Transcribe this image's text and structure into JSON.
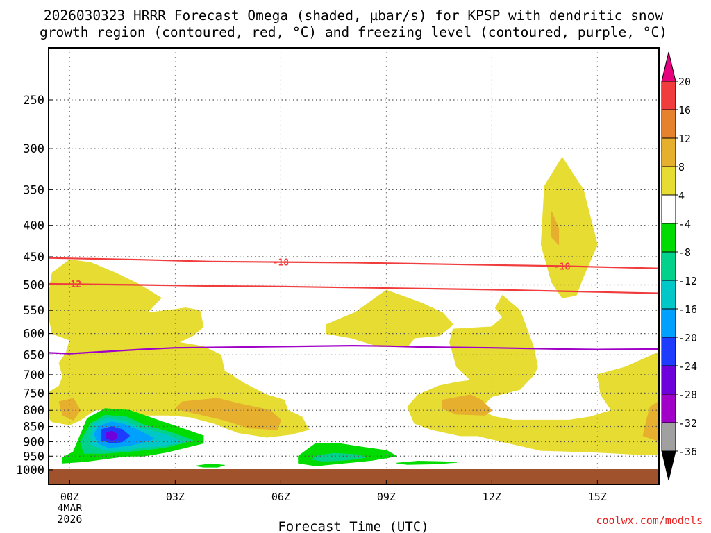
{
  "title": {
    "line1": "2026030323 HRRR Forecast Omega (shaded, µbar/s) for KPSP with dendritic snow",
    "line2": "growth region (contoured, red, °C) and freezing level (contoured, purple, °C)"
  },
  "footer": {
    "xlabel": "Forecast Time (UTC)",
    "credit": "coolwx.com/models"
  },
  "chart_data": {
    "type": "heatmap",
    "title": "2026030323 HRRR Forecast Omega (shaded, µbar/s) for KPSP with dendritic snow growth region (contoured, red, °C) and freezing level (contoured, purple, °C)",
    "xlabel": "Forecast Time (UTC)",
    "ylabel": "",
    "x_unit": "hours since 00Z 4MAR2026",
    "xlim": [
      -0.6,
      16.75
    ],
    "y_scale": "log-pressure (hPa, inverted)",
    "ylim": [
      1020,
      200
    ],
    "grid": true,
    "x_ticks": [
      {
        "hour": 0,
        "label": "00Z",
        "sub": [
          "4MAR",
          "2026"
        ]
      },
      {
        "hour": 3,
        "label": "03Z"
      },
      {
        "hour": 6,
        "label": "06Z"
      },
      {
        "hour": 9,
        "label": "09Z"
      },
      {
        "hour": 12,
        "label": "12Z"
      },
      {
        "hour": 15,
        "label": "15Z"
      }
    ],
    "y_ticks": [
      250,
      300,
      350,
      400,
      450,
      500,
      550,
      600,
      650,
      700,
      750,
      800,
      850,
      900,
      950,
      1000
    ],
    "ground": {
      "from_hPa": 1000,
      "color": "#a0522d"
    },
    "colorbar": {
      "levels": [
        -36,
        -32,
        -28,
        -24,
        -20,
        -16,
        -12,
        -8,
        -4,
        4,
        8,
        12,
        16,
        20
      ],
      "colors": [
        "#000000",
        "#a0a0a0",
        "#a000c8",
        "#6e00dc",
        "#1e3cff",
        "#00a0ff",
        "#00c8c8",
        "#00d28c",
        "#00dc00",
        "#ffffff",
        "#e6dc32",
        "#e6af2d",
        "#e6822d",
        "#f03c3c",
        "#e6007d"
      ],
      "colors_note": "first = below -36, last = above 20"
    },
    "omega_regions": [
      {
        "bin": "4 to 8",
        "color": "#e6dc32",
        "points": [
          [
            -0.5,
            478
          ],
          [
            0.0,
            455
          ],
          [
            0.6,
            460
          ],
          [
            1.3,
            478
          ],
          [
            2.0,
            500
          ],
          [
            2.6,
            525
          ],
          [
            2.2,
            555
          ],
          [
            2.8,
            550
          ],
          [
            3.3,
            545
          ],
          [
            3.7,
            550
          ],
          [
            3.8,
            585
          ],
          [
            3.5,
            605
          ],
          [
            3.1,
            620
          ],
          [
            3.8,
            630
          ],
          [
            4.3,
            650
          ],
          [
            4.4,
            690
          ],
          [
            5.0,
            725
          ],
          [
            5.6,
            755
          ],
          [
            6.1,
            770
          ],
          [
            6.2,
            800
          ],
          [
            6.6,
            820
          ],
          [
            6.8,
            860
          ],
          [
            6.3,
            875
          ],
          [
            5.6,
            885
          ],
          [
            4.8,
            870
          ],
          [
            4.1,
            840
          ],
          [
            3.4,
            820
          ],
          [
            2.8,
            815
          ],
          [
            2.1,
            815
          ],
          [
            1.5,
            800
          ],
          [
            1.2,
            795
          ],
          [
            0.7,
            800
          ],
          [
            0.3,
            830
          ],
          [
            0.0,
            845
          ],
          [
            -0.5,
            835
          ],
          [
            -0.8,
            800
          ],
          [
            -0.8,
            760
          ],
          [
            -0.3,
            730
          ],
          [
            -0.2,
            705
          ],
          [
            -0.3,
            670
          ],
          [
            -0.1,
            645
          ],
          [
            0.0,
            615
          ],
          [
            -0.5,
            600
          ],
          [
            -0.6,
            560
          ],
          [
            -0.6,
            520
          ]
        ]
      },
      {
        "bin": "4 to 8",
        "color": "#e6dc32",
        "points": [
          [
            7.3,
            580
          ],
          [
            8.1,
            555
          ],
          [
            9.0,
            510
          ],
          [
            10.0,
            535
          ],
          [
            10.6,
            555
          ],
          [
            10.9,
            580
          ],
          [
            10.5,
            605
          ],
          [
            9.8,
            610
          ],
          [
            9.6,
            630
          ],
          [
            8.8,
            630
          ],
          [
            8.0,
            610
          ],
          [
            7.3,
            600
          ]
        ]
      },
      {
        "bin": "4 to 8",
        "color": "#e6dc32",
        "points": [
          [
            9.9,
            755
          ],
          [
            10.5,
            730
          ],
          [
            11.0,
            720
          ],
          [
            11.4,
            715
          ],
          [
            11.0,
            680
          ],
          [
            10.8,
            620
          ],
          [
            10.9,
            590
          ],
          [
            12.0,
            585
          ],
          [
            12.3,
            565
          ],
          [
            12.1,
            545
          ],
          [
            12.3,
            520
          ],
          [
            12.8,
            550
          ],
          [
            13.0,
            590
          ],
          [
            13.2,
            635
          ],
          [
            13.3,
            680
          ],
          [
            13.2,
            700
          ],
          [
            12.8,
            740
          ],
          [
            12.0,
            760
          ],
          [
            11.6,
            800
          ],
          [
            12.1,
            820
          ],
          [
            12.6,
            830
          ],
          [
            13.4,
            830
          ],
          [
            14.2,
            830
          ],
          [
            14.8,
            820
          ],
          [
            15.4,
            800
          ],
          [
            15.1,
            755
          ],
          [
            15.0,
            700
          ],
          [
            15.8,
            680
          ],
          [
            16.7,
            645
          ],
          [
            16.8,
            830
          ],
          [
            16.8,
            945
          ],
          [
            16.3,
            945
          ],
          [
            14.8,
            935
          ],
          [
            13.4,
            930
          ],
          [
            12.3,
            900
          ],
          [
            11.6,
            880
          ],
          [
            11.1,
            880
          ],
          [
            10.3,
            860
          ],
          [
            9.8,
            840
          ],
          [
            9.6,
            790
          ]
        ]
      },
      {
        "bin": "4 to 8",
        "color": "#e6dc32",
        "points": [
          [
            13.5,
            345
          ],
          [
            14.0,
            310
          ],
          [
            14.6,
            350
          ],
          [
            15.0,
            430
          ],
          [
            14.6,
            485
          ],
          [
            14.4,
            520
          ],
          [
            14.0,
            525
          ],
          [
            13.7,
            495
          ],
          [
            13.4,
            430
          ]
        ]
      },
      {
        "bin": "8 to 12",
        "color": "#e6af2d",
        "points": [
          [
            3.2,
            775
          ],
          [
            4.2,
            765
          ],
          [
            4.8,
            780
          ],
          [
            5.7,
            800
          ],
          [
            6.0,
            830
          ],
          [
            5.9,
            860
          ],
          [
            5.1,
            855
          ],
          [
            4.4,
            830
          ],
          [
            3.6,
            810
          ],
          [
            3.0,
            795
          ]
        ]
      },
      {
        "bin": "8 to 12",
        "color": "#e6af2d",
        "points": [
          [
            -0.3,
            775
          ],
          [
            0.1,
            765
          ],
          [
            0.3,
            800
          ],
          [
            0.1,
            830
          ],
          [
            -0.2,
            815
          ]
        ]
      },
      {
        "bin": "8 to 12",
        "color": "#e6af2d",
        "points": [
          [
            10.6,
            770
          ],
          [
            11.4,
            755
          ],
          [
            11.7,
            770
          ],
          [
            12.0,
            800
          ],
          [
            11.8,
            815
          ],
          [
            11.0,
            812
          ],
          [
            10.6,
            795
          ]
        ]
      },
      {
        "bin": "8 to 12",
        "color": "#e6af2d",
        "points": [
          [
            16.5,
            790
          ],
          [
            16.8,
            770
          ],
          [
            16.8,
            900
          ],
          [
            16.3,
            880
          ],
          [
            16.4,
            830
          ]
        ]
      },
      {
        "bin": "8 to 12",
        "color": "#e6af2d",
        "points": [
          [
            13.7,
            380
          ],
          [
            13.9,
            405
          ],
          [
            13.9,
            430
          ],
          [
            13.7,
            418
          ]
        ]
      },
      {
        "bin": "-8 to -4",
        "color": "#00dc00",
        "points": [
          [
            0.5,
            825
          ],
          [
            1.0,
            795
          ],
          [
            1.7,
            800
          ],
          [
            2.5,
            830
          ],
          [
            3.3,
            860
          ],
          [
            3.8,
            880
          ],
          [
            3.8,
            905
          ],
          [
            3.3,
            920
          ],
          [
            2.8,
            935
          ],
          [
            2.1,
            950
          ],
          [
            1.6,
            950
          ],
          [
            1.0,
            960
          ],
          [
            0.4,
            970
          ],
          [
            -0.2,
            975
          ],
          [
            -0.2,
            955
          ],
          [
            0.1,
            935
          ]
        ]
      },
      {
        "bin": "-12 to -8",
        "color": "#00d28c",
        "points": [
          [
            0.6,
            840
          ],
          [
            1.0,
            815
          ],
          [
            1.6,
            820
          ],
          [
            2.1,
            845
          ],
          [
            2.9,
            870
          ],
          [
            3.5,
            895
          ],
          [
            3.2,
            905
          ],
          [
            2.7,
            920
          ],
          [
            2.0,
            930
          ],
          [
            1.5,
            935
          ],
          [
            1.0,
            940
          ],
          [
            0.4,
            940
          ],
          [
            0.3,
            900
          ]
        ]
      },
      {
        "bin": "-16 to -12",
        "color": "#00c8c8",
        "points": [
          [
            0.7,
            840
          ],
          [
            1.1,
            825
          ],
          [
            1.6,
            835
          ],
          [
            2.0,
            855
          ],
          [
            2.7,
            875
          ],
          [
            3.2,
            900
          ],
          [
            2.6,
            915
          ],
          [
            2.0,
            920
          ],
          [
            1.5,
            930
          ],
          [
            1.0,
            930
          ],
          [
            0.6,
            910
          ],
          [
            0.6,
            875
          ]
        ]
      },
      {
        "bin": "-20 to -16",
        "color": "#00a0ff",
        "points": [
          [
            0.8,
            850
          ],
          [
            1.2,
            835
          ],
          [
            1.6,
            845
          ],
          [
            2.0,
            865
          ],
          [
            2.4,
            890
          ],
          [
            2.0,
            905
          ],
          [
            1.6,
            915
          ],
          [
            1.1,
            920
          ],
          [
            0.8,
            905
          ],
          [
            0.7,
            875
          ]
        ]
      },
      {
        "bin": "-24 to -20",
        "color": "#1e3cff",
        "points": [
          [
            0.9,
            860
          ],
          [
            1.2,
            850
          ],
          [
            1.5,
            860
          ],
          [
            1.7,
            880
          ],
          [
            1.5,
            900
          ],
          [
            1.2,
            905
          ],
          [
            0.9,
            895
          ]
        ]
      },
      {
        "bin": "-28 to -24",
        "color": "#6e00dc",
        "points": [
          [
            1.05,
            870
          ],
          [
            1.2,
            865
          ],
          [
            1.35,
            875
          ],
          [
            1.35,
            890
          ],
          [
            1.2,
            895
          ],
          [
            1.05,
            888
          ]
        ]
      },
      {
        "bin": "-8 to -4",
        "color": "#00dc00",
        "points": [
          [
            6.5,
            950
          ],
          [
            7.0,
            905
          ],
          [
            7.6,
            905
          ],
          [
            8.4,
            920
          ],
          [
            9.0,
            930
          ],
          [
            9.3,
            950
          ],
          [
            8.6,
            965
          ],
          [
            7.8,
            975
          ],
          [
            7.0,
            985
          ],
          [
            6.5,
            975
          ]
        ]
      },
      {
        "bin": "-12 to -8",
        "color": "#00d28c",
        "points": [
          [
            7.0,
            950
          ],
          [
            7.5,
            940
          ],
          [
            8.2,
            945
          ],
          [
            8.4,
            955
          ],
          [
            7.8,
            965
          ],
          [
            7.2,
            968
          ],
          [
            6.9,
            962
          ]
        ]
      },
      {
        "bin": "-8 to -4",
        "color": "#00dc00",
        "points": [
          [
            9.3,
            975
          ],
          [
            9.9,
            968
          ],
          [
            10.6,
            970
          ],
          [
            11.0,
            972
          ],
          [
            10.4,
            978
          ],
          [
            9.6,
            980
          ]
        ]
      },
      {
        "bin": "-8 to -4",
        "color": "#00dc00",
        "points": [
          [
            3.6,
            985
          ],
          [
            4.0,
            978
          ],
          [
            4.4,
            983
          ],
          [
            4.2,
            990
          ],
          [
            3.8,
            990
          ]
        ]
      }
    ],
    "series": [
      {
        "name": "-18",
        "kind": "dendritic growth isotherm (°C)",
        "color": "#f03c3c",
        "x": [
          -0.6,
          2,
          4,
          6,
          8,
          10,
          12,
          14,
          16.75
        ],
        "y": [
          452,
          455,
          458,
          459,
          460,
          462,
          464,
          466,
          470
        ]
      },
      {
        "name": "-12",
        "kind": "dendritic growth isotherm (°C)",
        "color": "#f03c3c",
        "x": [
          -0.6,
          2,
          4,
          6,
          8,
          10,
          12,
          14,
          16.75
        ],
        "y": [
          498,
          500,
          502,
          503,
          505,
          507,
          509,
          512,
          516
        ]
      },
      {
        "name": "0",
        "kind": "freezing level (°C)",
        "color": "#a000c8",
        "x": [
          -0.6,
          0,
          1,
          2,
          3,
          4,
          6,
          8,
          9,
          10,
          12,
          14,
          15,
          16.75
        ],
        "y": [
          645,
          647,
          642,
          637,
          633,
          632,
          630,
          628,
          629,
          631,
          633,
          636,
          637,
          636
        ]
      }
    ],
    "contour_labels": [
      {
        "text": "-18",
        "x": 6.0,
        "y": 459,
        "color": "#f03c3c"
      },
      {
        "text": "-18",
        "x": 14.0,
        "y": 466,
        "color": "#f03c3c"
      },
      {
        "text": "-12",
        "x": 0.1,
        "y": 498,
        "color": "#f03c3c"
      }
    ]
  }
}
